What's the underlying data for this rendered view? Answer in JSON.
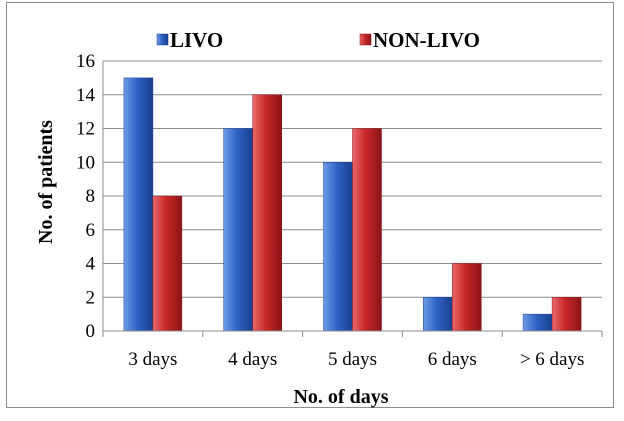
{
  "chart_data": {
    "type": "bar",
    "title": "",
    "xlabel": "No. of days",
    "ylabel": "No. of patients",
    "categories": [
      "3 days",
      "4 days",
      "5 days",
      "6 days",
      "> 6 days"
    ],
    "series": [
      {
        "name": "LIVO",
        "values": [
          15,
          12,
          10,
          2,
          1
        ],
        "color": "#2e64c4"
      },
      {
        "name": "NON-LIVO",
        "values": [
          8,
          14,
          12,
          4,
          2
        ],
        "color": "#c9272a"
      }
    ],
    "ylim": [
      0,
      16
    ],
    "yticks": [
      "0",
      "2",
      "4",
      "6",
      "8",
      "10",
      "12",
      "14",
      "16"
    ],
    "grid": true,
    "legend_position": "top"
  }
}
